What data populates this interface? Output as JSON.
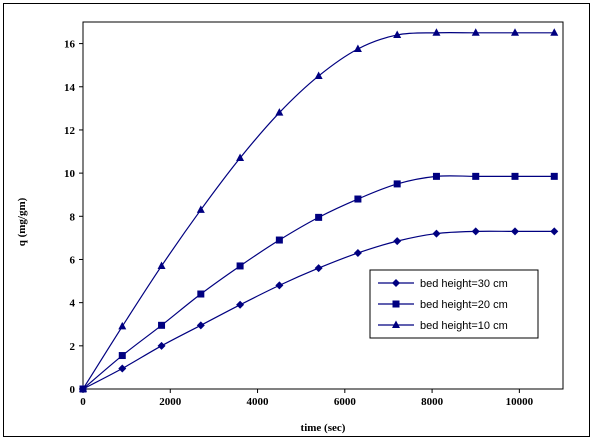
{
  "chart_data": {
    "type": "line",
    "title": "",
    "xlabel": "time  (sec)",
    "ylabel": "q (mg/gm)",
    "xlim": [
      0,
      11000
    ],
    "ylim": [
      0,
      17
    ],
    "x_ticks": [
      "0",
      "2000",
      "4000",
      "6000",
      "8000",
      "10000"
    ],
    "y_ticks": [
      "0",
      "2",
      "4",
      "6",
      "8",
      "10",
      "12",
      "14",
      "16"
    ],
    "grid": false,
    "legend_position": "right",
    "series": [
      {
        "name": "bed height=30 cm",
        "marker": "diamond",
        "color": "#000080",
        "x": [
          0,
          900,
          1800,
          2700,
          3600,
          4500,
          5400,
          6300,
          7200,
          8100,
          9000,
          9900,
          10800
        ],
        "y": [
          0,
          0.95,
          2.0,
          2.95,
          3.9,
          4.8,
          5.6,
          6.3,
          6.85,
          7.2,
          7.3,
          7.3,
          7.3
        ]
      },
      {
        "name": "bed height=20 cm",
        "marker": "square",
        "color": "#000080",
        "x": [
          0,
          900,
          1800,
          2700,
          3600,
          4500,
          5400,
          6300,
          7200,
          8100,
          9000,
          9900,
          10800
        ],
        "y": [
          0,
          1.55,
          2.95,
          4.4,
          5.7,
          6.9,
          7.95,
          8.8,
          9.5,
          9.85,
          9.85,
          9.85,
          9.85
        ]
      },
      {
        "name": "bed height=10 cm",
        "marker": "triangle",
        "color": "#000080",
        "x": [
          0,
          900,
          1800,
          2700,
          3600,
          4500,
          5400,
          6300,
          7200,
          8100,
          9000,
          9900,
          10800
        ],
        "y": [
          0,
          2.9,
          5.7,
          8.3,
          10.7,
          12.8,
          14.5,
          15.75,
          16.4,
          16.5,
          16.5,
          16.5,
          16.5
        ]
      }
    ]
  }
}
